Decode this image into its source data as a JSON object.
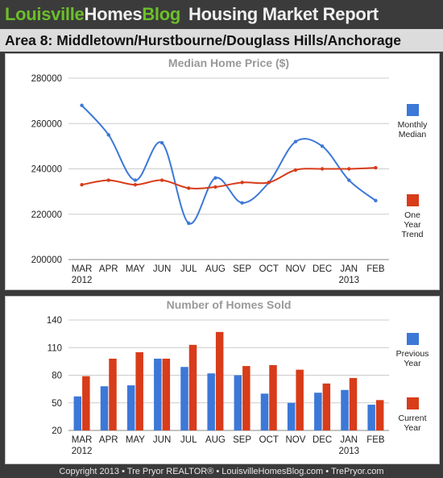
{
  "header": {
    "brand_part1": "Louisville",
    "brand_part2": "Homes",
    "brand_part3": "Blog",
    "report_title": "Housing Market Report"
  },
  "area_title": "Area 8: Middletown/Hurstbourne/Douglass Hills/Anchorage",
  "footer": "Copyright 2013 • Tre Pryor REALTOR®  • LouisvilleHomesBlog.com • TrePryor.com",
  "colors": {
    "blue": "#3c78d8",
    "red": "#d83c1a",
    "grid": "#cccccc",
    "title_gray": "#999999"
  },
  "chart_data": [
    {
      "type": "line",
      "title": "Median Home Price ($)",
      "categories": [
        "MAR",
        "APR",
        "MAY",
        "JUN",
        "JUL",
        "AUG",
        "SEP",
        "OCT",
        "NOV",
        "DEC",
        "JAN",
        "FEB"
      ],
      "year_labels": [
        {
          "index": 0,
          "text": "2012"
        },
        {
          "index": 10,
          "text": "2013"
        }
      ],
      "yticks": [
        200000,
        220000,
        240000,
        260000,
        280000
      ],
      "ylim": [
        200000,
        280000
      ],
      "grid": true,
      "legend_position": "right",
      "series": [
        {
          "name": "Monthly Median",
          "color": "#3c78d8",
          "values": [
            268000,
            255000,
            235000,
            251500,
            216000,
            236000,
            225000,
            234000,
            252000,
            250000,
            235000,
            226000
          ]
        },
        {
          "name": "One Year Trend",
          "color": "#d83c1a",
          "values": [
            233000,
            235000,
            233000,
            235000,
            231500,
            232000,
            234000,
            234000,
            239500,
            240000,
            240000,
            240500
          ]
        }
      ]
    },
    {
      "type": "bar",
      "title": "Number of Homes Sold",
      "categories": [
        "MAR",
        "APR",
        "MAY",
        "JUN",
        "JUL",
        "AUG",
        "SEP",
        "OCT",
        "NOV",
        "DEC",
        "JAN",
        "FEB"
      ],
      "year_labels": [
        {
          "index": 0,
          "text": "2012"
        },
        {
          "index": 10,
          "text": "2013"
        }
      ],
      "yticks": [
        20,
        50,
        80,
        110,
        140
      ],
      "ylim": [
        20,
        140
      ],
      "grid": true,
      "legend_position": "right",
      "series": [
        {
          "name": "Previous Year",
          "color": "#3c78d8",
          "values": [
            57,
            68,
            69,
            98,
            89,
            82,
            80,
            60,
            50,
            61,
            64,
            48
          ]
        },
        {
          "name": "Current Year",
          "color": "#d83c1a",
          "values": [
            79,
            98,
            105,
            98,
            113,
            127,
            90,
            91,
            86,
            71,
            77,
            53
          ]
        }
      ]
    }
  ]
}
